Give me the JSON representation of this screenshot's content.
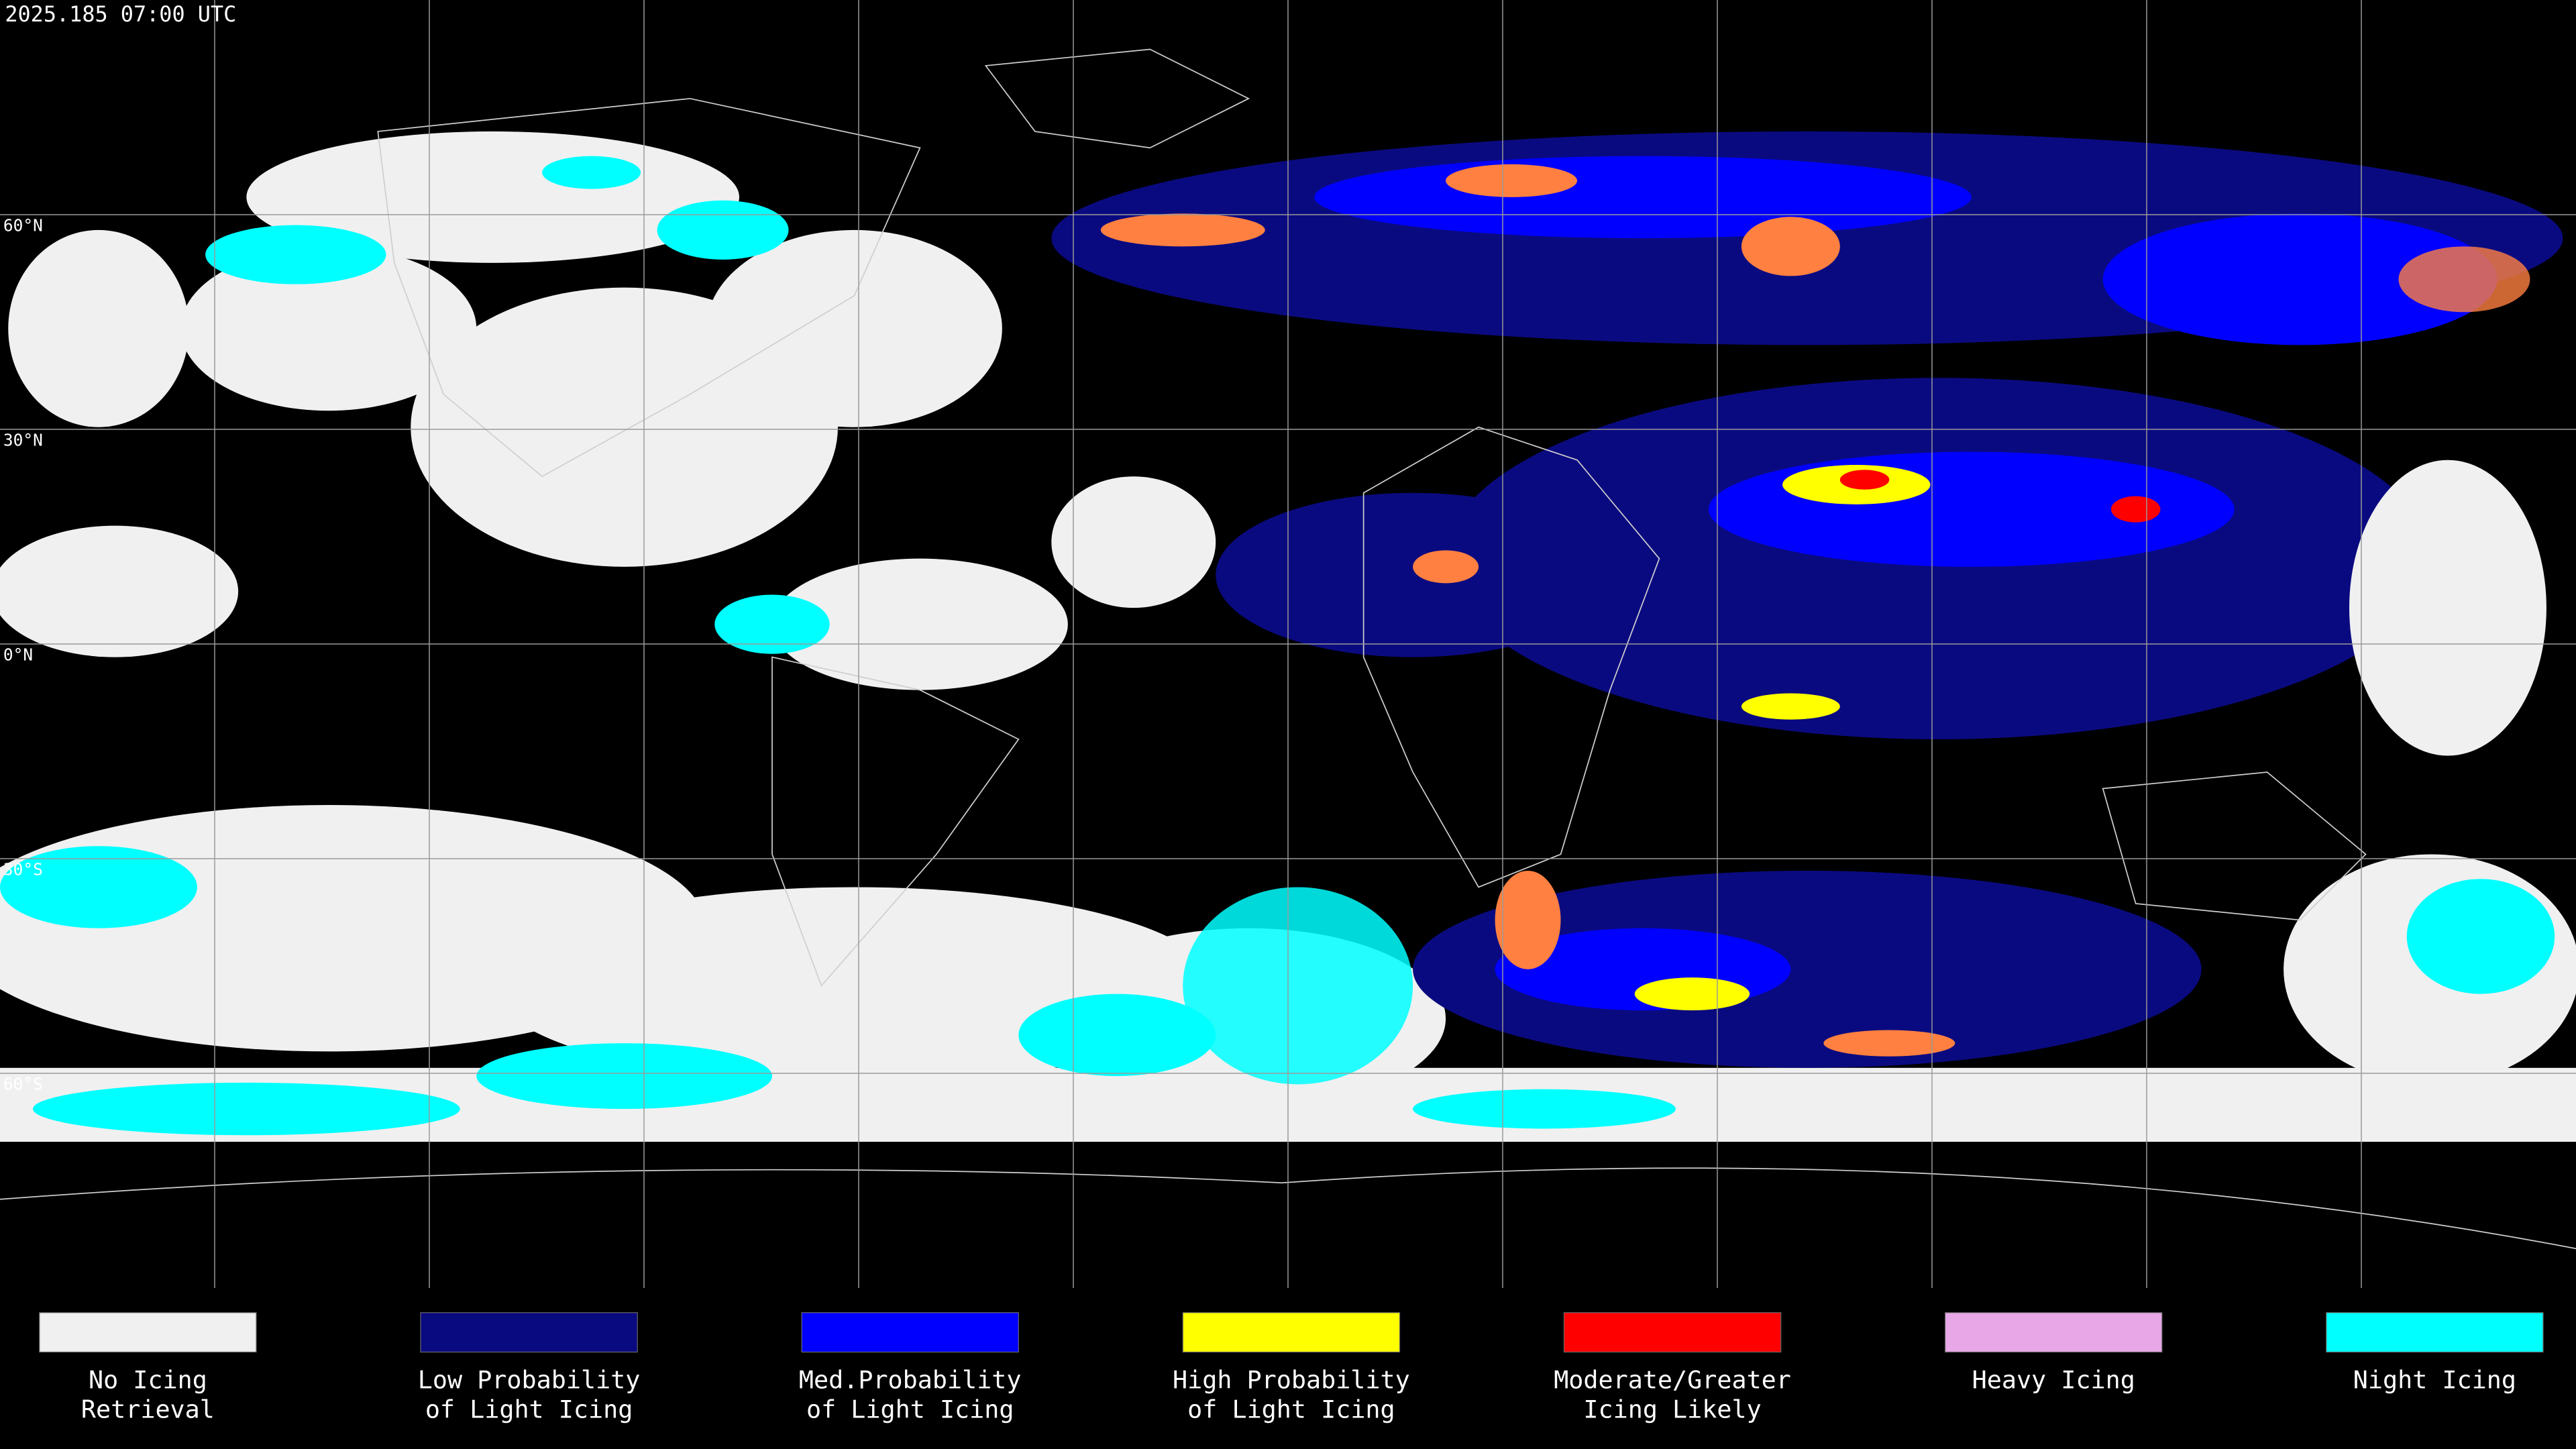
{
  "header": {
    "timestamp": "2025.185 07:00 UTC"
  },
  "map": {
    "latitude_labels": [
      "60°N",
      "30°N",
      "0°N",
      "30°S",
      "60°S"
    ]
  },
  "legend": {
    "items": [
      {
        "label": [
          "No Icing",
          "Retrieval"
        ],
        "color": "#f0f0f0"
      },
      {
        "label": [
          "Low Probability",
          "of Light Icing"
        ],
        "color": "#0a0a80"
      },
      {
        "label": [
          "Med.Probability",
          "of Light Icing"
        ],
        "color": "#0000ff"
      },
      {
        "label": [
          "High Probability",
          "of Light Icing"
        ],
        "color": "#ffff00"
      },
      {
        "label": [
          "Moderate/Greater",
          "Icing Likely"
        ],
        "color": "#ff0000"
      },
      {
        "label": [
          "Heavy Icing"
        ],
        "color": "#e8a8e8"
      },
      {
        "label": [
          "Night Icing"
        ],
        "color": "#00ffff"
      }
    ]
  }
}
